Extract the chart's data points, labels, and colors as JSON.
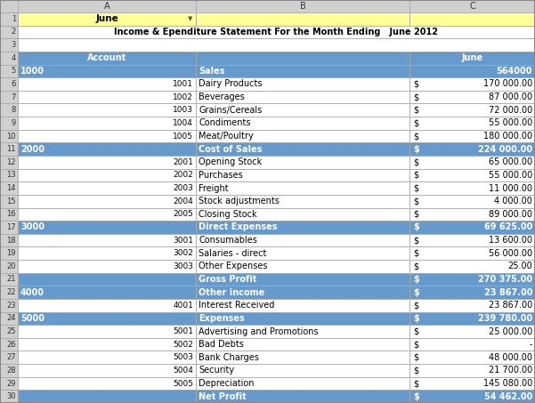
{
  "title": "Income & Ependiture Statement For the Month Ending   June 2012",
  "blue_bg": "#6699CC",
  "white_bg": "#FFFFFF",
  "yellow_bg": "#FFFF99",
  "gray_bg": "#D3D3D3",
  "light_gray_bg": "#E8E8E8",
  "header_text": "#FFFFFF",
  "dark_text": "#000000",
  "gray_text": "#555555",
  "grid_color": "#AAAAAA",
  "fig_w": 6.01,
  "fig_h": 4.53,
  "dpi": 100,
  "rows": [
    {
      "row": 1,
      "type": "filter",
      "A": "June",
      "B": "",
      "dollar": "",
      "C": "",
      "C_bold": false
    },
    {
      "row": 2,
      "type": "title",
      "A": "",
      "B": "",
      "dollar": "",
      "C": "",
      "C_bold": false
    },
    {
      "row": 3,
      "type": "empty",
      "A": "",
      "B": "",
      "dollar": "",
      "C": "",
      "C_bold": false
    },
    {
      "row": 4,
      "type": "colhead",
      "A": "Account",
      "B": "",
      "dollar": "",
      "C": "June",
      "C_bold": true
    },
    {
      "row": 5,
      "type": "section",
      "A": "1000",
      "B": "Sales",
      "dollar": "",
      "C": "564000",
      "C_bold": false
    },
    {
      "row": 6,
      "type": "detail",
      "A": "1001",
      "B": "Dairy Products",
      "dollar": "$",
      "C": "170 000.00",
      "C_bold": false
    },
    {
      "row": 7,
      "type": "detail",
      "A": "1002",
      "B": "Beverages",
      "dollar": "$",
      "C": "87 000.00",
      "C_bold": false
    },
    {
      "row": 8,
      "type": "detail",
      "A": "1003",
      "B": "Grains/Cereals",
      "dollar": "$",
      "C": "72 000.00",
      "C_bold": false
    },
    {
      "row": 9,
      "type": "detail",
      "A": "1004",
      "B": "Condiments",
      "dollar": "$",
      "C": "55 000.00",
      "C_bold": false
    },
    {
      "row": 10,
      "type": "detail",
      "A": "1005",
      "B": "Meat/Poultry",
      "dollar": "$",
      "C": "180 000.00",
      "C_bold": false
    },
    {
      "row": 11,
      "type": "section",
      "A": "2000",
      "B": "Cost of Sales",
      "dollar": "$",
      "C": "224 000.00",
      "C_bold": true
    },
    {
      "row": 12,
      "type": "detail",
      "A": "2001",
      "B": "Opening Stock",
      "dollar": "$",
      "C": "65 000.00",
      "C_bold": false
    },
    {
      "row": 13,
      "type": "detail",
      "A": "2002",
      "B": "Purchases",
      "dollar": "$",
      "C": "55 000.00",
      "C_bold": false
    },
    {
      "row": 14,
      "type": "detail",
      "A": "2003",
      "B": "Freight",
      "dollar": "$",
      "C": "11 000.00",
      "C_bold": false
    },
    {
      "row": 15,
      "type": "detail",
      "A": "2004",
      "B": "Stock adjustments",
      "dollar": "$",
      "C": "4 000.00",
      "C_bold": false
    },
    {
      "row": 16,
      "type": "detail",
      "A": "2005",
      "B": "Closing Stock",
      "dollar": "$",
      "C": "89 000.00",
      "C_bold": false
    },
    {
      "row": 17,
      "type": "section",
      "A": "3000",
      "B": "Direct Expenses",
      "dollar": "$",
      "C": "69 625.00",
      "C_bold": true
    },
    {
      "row": 18,
      "type": "detail",
      "A": "3001",
      "B": "Consumables",
      "dollar": "$",
      "C": "13 600.00",
      "C_bold": false
    },
    {
      "row": 19,
      "type": "detail",
      "A": "3002",
      "B": "Salaries - direct",
      "dollar": "$",
      "C": "56 000.00",
      "C_bold": false
    },
    {
      "row": 20,
      "type": "detail",
      "A": "3003",
      "B": "Other Expenses",
      "dollar": "$",
      "C": "25.00",
      "C_bold": false
    },
    {
      "row": 21,
      "type": "summary",
      "A": "",
      "B": "Gross Profit",
      "dollar": "$",
      "C": "270 375.00",
      "C_bold": true
    },
    {
      "row": 22,
      "type": "section",
      "A": "4000",
      "B": "Other income",
      "dollar": "$",
      "C": "23 867.00",
      "C_bold": true
    },
    {
      "row": 23,
      "type": "detail",
      "A": "4001",
      "B": "Interest Received",
      "dollar": "$",
      "C": "23 867.00",
      "C_bold": false
    },
    {
      "row": 24,
      "type": "section",
      "A": "5000",
      "B": "Expenses",
      "dollar": "$",
      "C": "239 780.00",
      "C_bold": true
    },
    {
      "row": 25,
      "type": "detail",
      "A": "5001",
      "B": "Advertising and Promotions",
      "dollar": "$",
      "C": "25 000.00",
      "C_bold": false
    },
    {
      "row": 26,
      "type": "detail",
      "A": "5002",
      "B": "Bad Debts",
      "dollar": "$",
      "C": "-",
      "C_bold": false
    },
    {
      "row": 27,
      "type": "detail",
      "A": "5003",
      "B": "Bank Charges",
      "dollar": "$",
      "C": "48 000.00",
      "C_bold": false
    },
    {
      "row": 28,
      "type": "detail",
      "A": "5004",
      "B": "Security",
      "dollar": "$",
      "C": "21 700.00",
      "C_bold": false
    },
    {
      "row": 29,
      "type": "detail",
      "A": "5005",
      "B": "Depreciation",
      "dollar": "$",
      "C": "145 080.00",
      "C_bold": false
    },
    {
      "row": 30,
      "type": "summary",
      "A": "",
      "B": "Net Profit",
      "dollar": "$",
      "C": "54 462.00",
      "C_bold": true
    }
  ]
}
